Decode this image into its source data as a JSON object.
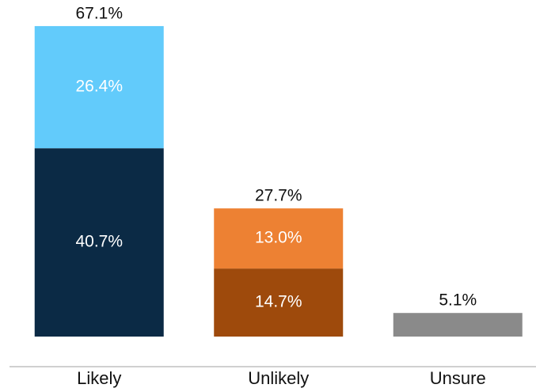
{
  "chart_data": {
    "type": "stacked_bar",
    "categories": [
      "Likely",
      "Unlikely",
      "Unsure"
    ],
    "series": [
      {
        "colors": [
          "#0b2a45",
          "#9e4a0c",
          "#8a8a8a"
        ],
        "values": [
          40.7,
          14.7,
          5.1
        ],
        "value_labels": [
          "40.7%",
          "14.7%",
          null
        ]
      },
      {
        "colors": [
          "#62cbfb",
          "#ed8133",
          null
        ],
        "values": [
          26.4,
          13.0,
          null
        ],
        "value_labels": [
          "26.4%",
          "13.0%",
          null
        ]
      }
    ],
    "totals": [
      67.1,
      27.7,
      5.1
    ],
    "total_labels": [
      "67.1%",
      "27.7%",
      "5.1%"
    ],
    "ylim": [
      0,
      70
    ]
  }
}
